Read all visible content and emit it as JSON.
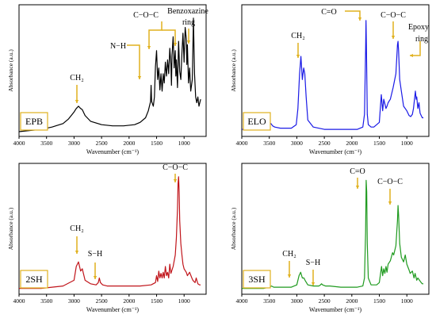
{
  "chart_data": [
    {
      "type": "line",
      "panel_label": "EPB",
      "xlabel": "Wavenumber (cm⁻¹)",
      "ylabel": "Absorbance (a.u.)",
      "xlim": [
        4000,
        600
      ],
      "x_reversed": true,
      "x_ticks": [
        4000,
        3500,
        3000,
        2500,
        2000,
        1500,
        1000
      ],
      "color": "#000000",
      "x": [
        4000,
        3800,
        3600,
        3400,
        3200,
        3100,
        3000,
        2960,
        2920,
        2880,
        2850,
        2800,
        2700,
        2500,
        2300,
        2100,
        1900,
        1800,
        1700,
        1650,
        1610,
        1600,
        1590,
        1560,
        1540,
        1520,
        1500,
        1480,
        1460,
        1440,
        1420,
        1400,
        1380,
        1360,
        1340,
        1320,
        1300,
        1280,
        1260,
        1240,
        1230,
        1220,
        1200,
        1180,
        1160,
        1150,
        1140,
        1120,
        1100,
        1080,
        1060,
        1040,
        1020,
        1000,
        980,
        960,
        950,
        940,
        920,
        900,
        880,
        850,
        830,
        810,
        790,
        770,
        750,
        730,
        700
      ],
      "y": [
        0.0,
        0.01,
        0.02,
        0.04,
        0.07,
        0.11,
        0.17,
        0.2,
        0.22,
        0.2,
        0.19,
        0.14,
        0.09,
        0.06,
        0.05,
        0.05,
        0.06,
        0.08,
        0.12,
        0.18,
        0.26,
        0.4,
        0.26,
        0.22,
        0.3,
        0.56,
        0.7,
        0.45,
        0.55,
        0.36,
        0.5,
        0.35,
        0.5,
        0.42,
        0.6,
        0.48,
        0.62,
        0.5,
        0.72,
        0.58,
        0.4,
        0.66,
        0.82,
        0.55,
        0.7,
        0.48,
        0.62,
        0.38,
        0.78,
        0.52,
        0.45,
        0.68,
        0.85,
        0.6,
        0.9,
        0.8,
        0.58,
        0.75,
        0.42,
        0.55,
        0.35,
        0.45,
        0.98,
        0.5,
        0.3,
        0.25,
        0.3,
        0.22,
        0.28
      ],
      "annotations": [
        "CH₂",
        "N−H",
        "C−O−C",
        "Benzoxazine",
        "ring"
      ]
    },
    {
      "type": "line",
      "panel_label": "ELO",
      "xlabel": "Wavenumber (cm⁻¹)",
      "ylabel": "Absorbance (a.u.)",
      "xlim": [
        4000,
        600
      ],
      "x_reversed": true,
      "x_ticks": [
        4000,
        3500,
        3000,
        2500,
        2000,
        1500,
        1000
      ],
      "color": "#1a1ae6",
      "x": [
        4000,
        3800,
        3600,
        3500,
        3470,
        3440,
        3400,
        3300,
        3100,
        3010,
        2980,
        2950,
        2925,
        2900,
        2875,
        2855,
        2830,
        2800,
        2700,
        2500,
        2300,
        2100,
        1900,
        1800,
        1770,
        1750,
        1742,
        1735,
        1720,
        1700,
        1650,
        1600,
        1500,
        1465,
        1440,
        1420,
        1380,
        1360,
        1340,
        1300,
        1250,
        1200,
        1170,
        1160,
        1150,
        1130,
        1100,
        1060,
        1000,
        960,
        930,
        900,
        880,
        845,
        830,
        820,
        800,
        780,
        760,
        740,
        720,
        700
      ],
      "y": [
        0.02,
        0.02,
        0.03,
        0.05,
        0.07,
        0.05,
        0.04,
        0.03,
        0.03,
        0.06,
        0.2,
        0.5,
        0.65,
        0.45,
        0.55,
        0.5,
        0.3,
        0.1,
        0.04,
        0.02,
        0.02,
        0.02,
        0.02,
        0.04,
        0.15,
        0.7,
        0.96,
        0.75,
        0.15,
        0.06,
        0.04,
        0.04,
        0.08,
        0.32,
        0.18,
        0.28,
        0.2,
        0.22,
        0.25,
        0.28,
        0.38,
        0.5,
        0.75,
        0.78,
        0.7,
        0.45,
        0.35,
        0.22,
        0.18,
        0.14,
        0.13,
        0.15,
        0.2,
        0.35,
        0.28,
        0.3,
        0.2,
        0.25,
        0.16,
        0.14,
        0.12,
        0.12
      ],
      "annotations": [
        "CH₂",
        "C=O",
        "C−O−C",
        "Epoxy",
        "ring"
      ]
    },
    {
      "type": "line",
      "panel_label": "2SH",
      "xlabel": "Wavenumber (cm⁻¹)",
      "ylabel": "Absorbance (a.u.)",
      "xlim": [
        4000,
        600
      ],
      "x_reversed": true,
      "x_ticks": [
        4000,
        3500,
        3000,
        2500,
        2000,
        1500,
        1000
      ],
      "color": "#c0141a",
      "x": [
        4000,
        3800,
        3600,
        3400,
        3200,
        3000,
        2960,
        2920,
        2880,
        2850,
        2800,
        2700,
        2600,
        2560,
        2540,
        2520,
        2480,
        2400,
        2200,
        2000,
        1800,
        1600,
        1520,
        1500,
        1480,
        1460,
        1440,
        1420,
        1400,
        1380,
        1360,
        1340,
        1320,
        1300,
        1280,
        1260,
        1240,
        1200,
        1160,
        1140,
        1120,
        1110,
        1100,
        1090,
        1080,
        1060,
        1040,
        1020,
        1000,
        960,
        940,
        900,
        860,
        840,
        800,
        780,
        750,
        720,
        700
      ],
      "y": [
        0.01,
        0.01,
        0.01,
        0.02,
        0.03,
        0.08,
        0.2,
        0.24,
        0.16,
        0.18,
        0.08,
        0.05,
        0.04,
        0.06,
        0.1,
        0.06,
        0.04,
        0.03,
        0.03,
        0.03,
        0.03,
        0.04,
        0.06,
        0.12,
        0.07,
        0.16,
        0.1,
        0.14,
        0.1,
        0.15,
        0.1,
        0.2,
        0.12,
        0.15,
        0.1,
        0.22,
        0.14,
        0.2,
        0.3,
        0.45,
        0.7,
        0.92,
        0.98,
        0.85,
        0.6,
        0.4,
        0.3,
        0.22,
        0.18,
        0.15,
        0.12,
        0.15,
        0.1,
        0.08,
        0.06,
        0.1,
        0.05,
        0.04,
        0.04
      ],
      "annotations": [
        "CH₂",
        "S−H",
        "C−O−C"
      ]
    },
    {
      "type": "line",
      "panel_label": "3SH",
      "xlabel": "Wavenumber (cm⁻¹)",
      "ylabel": "Absorbance (a.u.)",
      "xlim": [
        4000,
        600
      ],
      "x_reversed": true,
      "x_ticks": [
        4000,
        3500,
        3000,
        2500,
        2000,
        1500,
        1000
      ],
      "color": "#1f9a1f",
      "x": [
        4000,
        3800,
        3600,
        3500,
        3460,
        3420,
        3300,
        3100,
        3000,
        2960,
        2930,
        2900,
        2870,
        2850,
        2800,
        2700,
        2600,
        2570,
        2550,
        2530,
        2480,
        2400,
        2200,
        2000,
        1900,
        1800,
        1770,
        1750,
        1740,
        1730,
        1720,
        1700,
        1650,
        1550,
        1500,
        1460,
        1440,
        1420,
        1400,
        1380,
        1360,
        1340,
        1300,
        1260,
        1240,
        1200,
        1170,
        1160,
        1150,
        1130,
        1100,
        1060,
        1030,
        1000,
        960,
        940,
        900,
        870,
        850,
        820,
        800,
        770,
        740,
        720,
        700
      ],
      "y": [
        0.01,
        0.01,
        0.01,
        0.02,
        0.03,
        0.02,
        0.02,
        0.02,
        0.04,
        0.12,
        0.15,
        0.1,
        0.1,
        0.08,
        0.04,
        0.03,
        0.03,
        0.04,
        0.05,
        0.04,
        0.03,
        0.03,
        0.02,
        0.02,
        0.02,
        0.03,
        0.1,
        0.5,
        0.95,
        0.85,
        0.4,
        0.1,
        0.04,
        0.04,
        0.06,
        0.2,
        0.12,
        0.18,
        0.14,
        0.2,
        0.15,
        0.22,
        0.25,
        0.32,
        0.3,
        0.38,
        0.6,
        0.73,
        0.65,
        0.4,
        0.28,
        0.24,
        0.3,
        0.22,
        0.17,
        0.14,
        0.16,
        0.1,
        0.14,
        0.08,
        0.1,
        0.08,
        0.06,
        0.05,
        0.05
      ],
      "annotations": [
        "CH₂",
        "S−H",
        "C=O",
        "C−O−C"
      ]
    }
  ]
}
